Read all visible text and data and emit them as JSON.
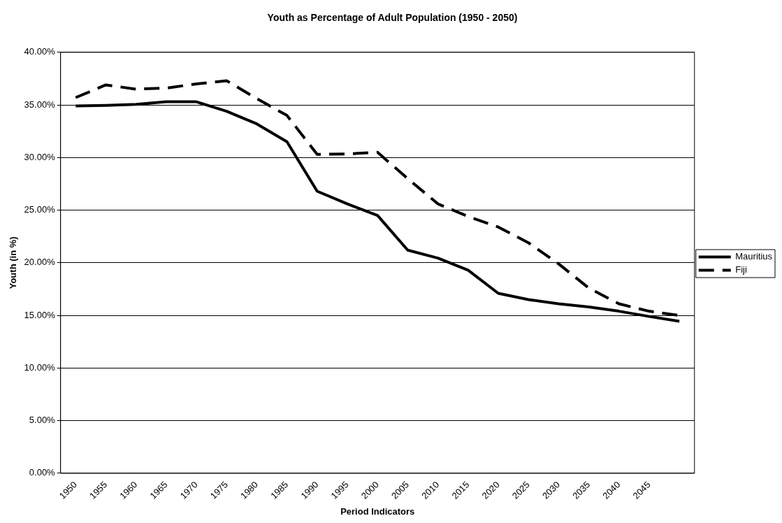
{
  "chart_data": {
    "type": "line",
    "title": "Youth as Percentage of Adult Population (1950 - 2050)",
    "xlabel": "Period Indicators",
    "ylabel": "Youth (in %)",
    "categories": [
      "1950",
      "1955",
      "1960",
      "1965",
      "1970",
      "1975",
      "1980",
      "1985",
      "1990",
      "1995",
      "2000",
      "2005",
      "2010",
      "2015",
      "2020",
      "2025",
      "2030",
      "2035",
      "2040",
      "2045",
      null
    ],
    "series": [
      {
        "name": "Mauritius",
        "color": "#000000",
        "line_style": "solid",
        "values": [
          34.9,
          34.95,
          35.05,
          35.3,
          35.3,
          34.4,
          33.2,
          31.5,
          26.8,
          25.6,
          24.5,
          21.2,
          20.45,
          19.3,
          17.1,
          16.5,
          16.1,
          15.8,
          15.4,
          14.9,
          14.45
        ]
      },
      {
        "name": "Fiji",
        "color": "#000000",
        "line_style": "dashed",
        "values": [
          35.7,
          36.9,
          36.5,
          36.6,
          37.0,
          37.3,
          35.6,
          34.0,
          30.3,
          30.35,
          30.5,
          28.0,
          25.6,
          24.4,
          23.4,
          21.9,
          19.9,
          17.6,
          16.1,
          15.4,
          15.0
        ]
      }
    ],
    "ylim": [
      0,
      40
    ],
    "yticks": [
      {
        "value": 0,
        "label": "0.00%"
      },
      {
        "value": 5,
        "label": "5.00%"
      },
      {
        "value": 10,
        "label": "10.00%"
      },
      {
        "value": 15,
        "label": "15.00%"
      },
      {
        "value": 20,
        "label": "20.00%"
      },
      {
        "value": 25,
        "label": "25.00%"
      },
      {
        "value": 30,
        "label": "30.00%"
      },
      {
        "value": 35,
        "label": "35.00%"
      },
      {
        "value": 40,
        "label": "40.00%"
      }
    ],
    "grid": "y",
    "legend": "right",
    "marker": "none"
  }
}
